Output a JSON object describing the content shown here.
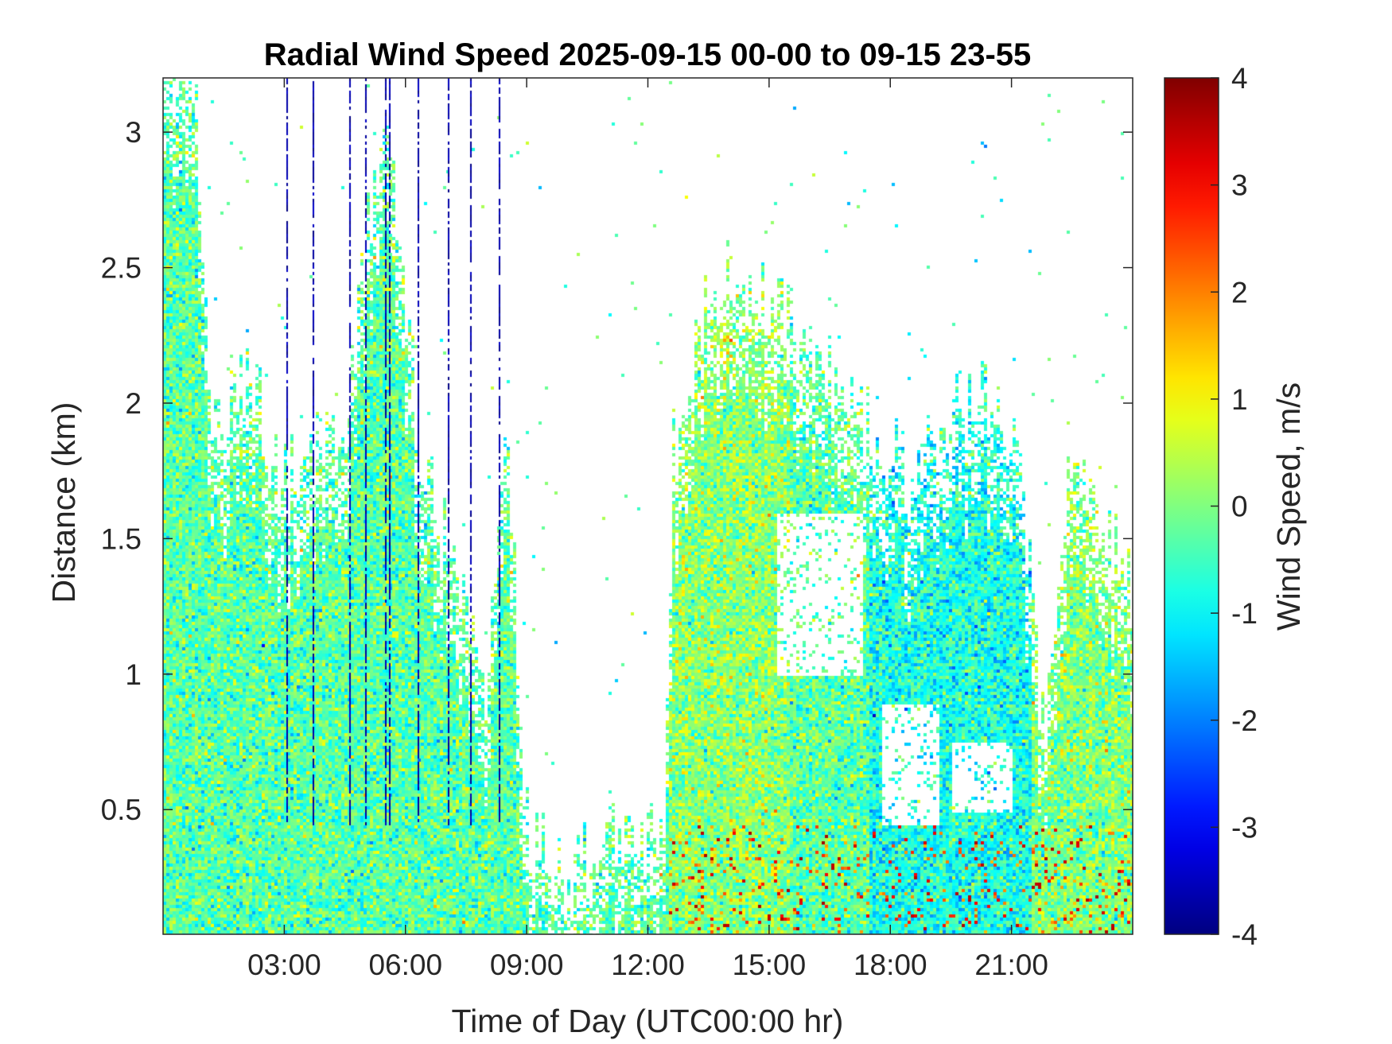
{
  "chart_data": {
    "type": "heatmap",
    "title": "Radial Wind Speed 2025-09-15 00-00 to 09-15 23-55",
    "xlabel": "Time of Day (UTC00:00 hr)",
    "ylabel": "Distance (km)",
    "colorbar_label": "Wind Speed, m/s",
    "x_unit": "hours",
    "xlim": [
      0,
      24
    ],
    "ylim": [
      0.04,
      3.2
    ],
    "clim": [
      -4,
      4
    ],
    "colormap": "jet",
    "x_ticks": [
      {
        "value": 3,
        "label": "03:00"
      },
      {
        "value": 6,
        "label": "06:00"
      },
      {
        "value": 9,
        "label": "09:00"
      },
      {
        "value": 12,
        "label": "12:00"
      },
      {
        "value": 15,
        "label": "15:00"
      },
      {
        "value": 18,
        "label": "18:00"
      },
      {
        "value": 21,
        "label": "21:00"
      }
    ],
    "y_ticks": [
      {
        "value": 0.5,
        "label": "0.5"
      },
      {
        "value": 1,
        "label": "1"
      },
      {
        "value": 1.5,
        "label": "1.5"
      },
      {
        "value": 2,
        "label": "2"
      },
      {
        "value": 2.5,
        "label": "2.5"
      },
      {
        "value": 3,
        "label": "3"
      }
    ],
    "colorbar_ticks": [
      {
        "value": 4,
        "label": "4"
      },
      {
        "value": 3,
        "label": "3"
      },
      {
        "value": 2,
        "label": "2"
      },
      {
        "value": 1,
        "label": "1"
      },
      {
        "value": 0,
        "label": "0"
      },
      {
        "value": -1,
        "label": "-1"
      },
      {
        "value": -2,
        "label": "-2"
      },
      {
        "value": -3,
        "label": "-3"
      },
      {
        "value": -4,
        "label": "-4"
      }
    ],
    "signal_top_km": [
      {
        "t": 0.0,
        "top": 3.2
      },
      {
        "t": 0.8,
        "top": 3.2
      },
      {
        "t": 1.2,
        "top": 1.8
      },
      {
        "t": 2.0,
        "top": 2.15
      },
      {
        "t": 3.0,
        "top": 1.7
      },
      {
        "t": 4.5,
        "top": 1.9
      },
      {
        "t": 5.5,
        "top": 3.2
      },
      {
        "t": 6.3,
        "top": 1.9
      },
      {
        "t": 7.0,
        "top": 1.5
      },
      {
        "t": 8.0,
        "top": 0.9
      },
      {
        "t": 8.5,
        "top": 2.0
      },
      {
        "t": 9.0,
        "top": 0.45
      },
      {
        "t": 10.0,
        "top": 0.25
      },
      {
        "t": 10.5,
        "top": 0.33
      },
      {
        "t": 11.0,
        "top": 0.45
      },
      {
        "t": 12.4,
        "top": 0.45
      },
      {
        "t": 12.6,
        "top": 1.8
      },
      {
        "t": 13.5,
        "top": 2.45
      },
      {
        "t": 14.5,
        "top": 2.5
      },
      {
        "t": 15.5,
        "top": 2.3
      },
      {
        "t": 16.5,
        "top": 2.15
      },
      {
        "t": 17.5,
        "top": 1.9
      },
      {
        "t": 18.5,
        "top": 1.7
      },
      {
        "t": 19.5,
        "top": 2.0
      },
      {
        "t": 20.5,
        "top": 2.05
      },
      {
        "t": 21.2,
        "top": 1.8
      },
      {
        "t": 21.8,
        "top": 0.7
      },
      {
        "t": 22.5,
        "top": 1.9
      },
      {
        "t": 24.0,
        "top": 1.3
      }
    ],
    "gaps": [
      {
        "t0": 15.2,
        "t1": 17.3,
        "lo_km": 1.0,
        "hi_km": 1.6
      },
      {
        "t0": 16.0,
        "t1": 17.0,
        "lo_km": 1.0,
        "hi_km": 1.5
      },
      {
        "t0": 17.8,
        "t1": 19.2,
        "lo_km": 0.45,
        "hi_km": 0.9
      },
      {
        "t0": 19.5,
        "t1": 21.0,
        "lo_km": 0.5,
        "hi_km": 0.75
      }
    ],
    "negative_streaks_h": [
      3.05,
      3.7,
      4.6,
      5.0,
      5.5,
      5.6,
      6.3,
      7.05,
      7.6,
      8.3
    ],
    "mean_speed_by_period": [
      {
        "from_h": 0,
        "to_h": 12.5,
        "mean": -0.3
      },
      {
        "from_h": 12.5,
        "to_h": 15.5,
        "mean": 0.1
      },
      {
        "from_h": 17.5,
        "to_h": 21.5,
        "mean": -0.8
      },
      {
        "from_h": 21.5,
        "to_h": 24,
        "mean": 0.0
      }
    ]
  }
}
